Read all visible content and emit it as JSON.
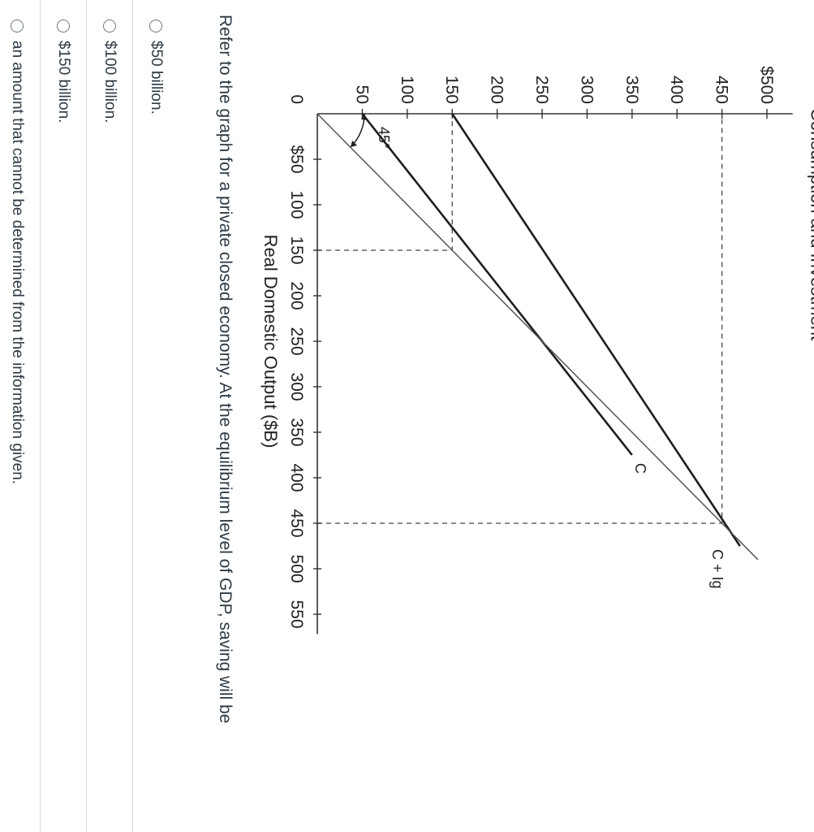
{
  "question": {
    "text": "Refer to the graph for a private closed economy. At the equilibrium level of GDP, saving will be",
    "options": [
      {
        "label": "$50 billion."
      },
      {
        "label": "$100 billion."
      },
      {
        "label": "$150 billion."
      },
      {
        "label": "an amount that cannot be determined from the information given."
      }
    ]
  },
  "chart_data": {
    "type": "line",
    "ylabel": "Consumption and Investment",
    "xlabel": "Real Domestic Output ($B)",
    "origin_label": "0",
    "angle_label": "45°",
    "x_ticks": [
      {
        "value": 50,
        "label": "$50"
      },
      {
        "value": 100,
        "label": "100"
      },
      {
        "value": 150,
        "label": "150"
      },
      {
        "value": 200,
        "label": "200"
      },
      {
        "value": 250,
        "label": "250"
      },
      {
        "value": 300,
        "label": "300"
      },
      {
        "value": 350,
        "label": "350"
      },
      {
        "value": 400,
        "label": "400"
      },
      {
        "value": 450,
        "label": "450"
      },
      {
        "value": 500,
        "label": "500"
      },
      {
        "value": 550,
        "label": "550"
      }
    ],
    "y_ticks": [
      {
        "value": 50,
        "label": "50"
      },
      {
        "value": 100,
        "label": "100"
      },
      {
        "value": 150,
        "label": "150"
      },
      {
        "value": 200,
        "label": "200"
      },
      {
        "value": 250,
        "label": "250"
      },
      {
        "value": 300,
        "label": "300"
      },
      {
        "value": 350,
        "label": "350"
      },
      {
        "value": 400,
        "label": "400"
      },
      {
        "value": 450,
        "label": "450"
      },
      {
        "value": 500,
        "label": "$500"
      }
    ],
    "xlim": [
      0,
      570
    ],
    "ylim": [
      0,
      525
    ],
    "series": [
      {
        "name": "C",
        "points": [
          [
            0,
            50
          ],
          [
            375,
            350
          ]
        ]
      },
      {
        "name": "C + Ig",
        "points": [
          [
            0,
            150
          ],
          [
            475,
            470
          ]
        ]
      },
      {
        "points": [
          [
            0,
            0
          ],
          [
            490,
            490
          ]
        ]
      }
    ],
    "guides": [
      {
        "points": [
          [
            150,
            0
          ],
          [
            150,
            150
          ],
          [
            0,
            150
          ]
        ]
      },
      {
        "points": [
          [
            450,
            0
          ],
          [
            450,
            450
          ],
          [
            0,
            450
          ]
        ]
      }
    ]
  }
}
